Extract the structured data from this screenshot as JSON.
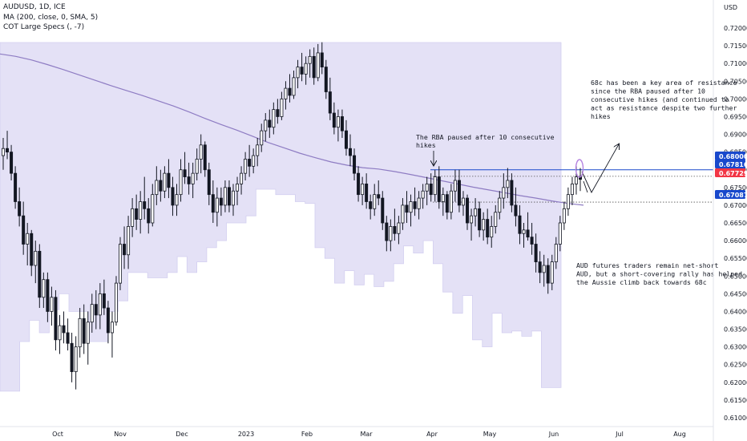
{
  "legend": {
    "symbol": "AUDUSD, 1D, ICE",
    "ma": "MA (200, close, 0, SMA, 5)",
    "cot": "COT Large Specs (, -7)"
  },
  "currency_label": "USD",
  "chart_data": {
    "type": "candlestick",
    "symbol": "AUDUSD",
    "timeframe": "1D",
    "x_ticks": [
      "Oct",
      "Nov",
      "Dec",
      "2023",
      "Feb",
      "Mar",
      "Apr",
      "May",
      "Jun",
      "Jul",
      "Aug"
    ],
    "y_ticks": [
      "0.72000",
      "0.71500",
      "0.71000",
      "0.70500",
      "0.70000",
      "0.69500",
      "0.69000",
      "0.68500",
      "0.68000",
      "0.67500",
      "0.67000",
      "0.66500",
      "0.66000",
      "0.65500",
      "0.65000",
      "0.64500",
      "0.64000",
      "0.63500",
      "0.63000",
      "0.62500",
      "0.62000",
      "0.61500",
      "0.61000"
    ],
    "ylim": [
      0.609,
      0.7245
    ],
    "price_badges": [
      {
        "value": "0.68000",
        "color": "#1848cc"
      },
      {
        "value": "0.67816",
        "color": "#1848cc"
      },
      {
        "value": "0.67729",
        "color": "#f23645"
      },
      {
        "value": "0.67087",
        "color": "#1848cc"
      }
    ],
    "horizontal_lines": [
      {
        "price": 0.68,
        "style": "solid",
        "color": "#1848cc"
      },
      {
        "price": 0.67816,
        "style": "dotted",
        "color": "#555555"
      },
      {
        "price": 0.67087,
        "style": "dotted",
        "color": "#555555"
      }
    ],
    "annotations": [
      {
        "lines": [
          "The RBA paused after 10 consecutive",
          "hikes"
        ]
      },
      {
        "lines": [
          "68c has been a key area of resistance",
          "since the RBA paused after 10",
          "consecutive hikes (and continued to",
          "act as resistance despite two further",
          "hikes"
        ]
      },
      {
        "lines": [
          "AUD futures traders remain net-short",
          "AUD, but a short-covering rally has helped",
          "the Aussie climb back towards 68c"
        ]
      }
    ],
    "series": [
      {
        "name": "MA (200, close, 0, SMA, 5)",
        "color": "#8e7cc3",
        "values": [
          0.7127,
          0.712,
          0.711,
          0.7097,
          0.7083,
          0.7068,
          0.7053,
          0.7038,
          0.7024,
          0.701,
          0.6995,
          0.698,
          0.6963,
          0.6945,
          0.6928,
          0.6912,
          0.6895,
          0.6877,
          0.6862,
          0.6847,
          0.6834,
          0.6822,
          0.6813,
          0.6806,
          0.6802,
          0.6795,
          0.6787,
          0.6778,
          0.6769,
          0.676,
          0.6751,
          0.6743,
          0.6735,
          0.6727,
          0.672,
          0.6712,
          0.6705,
          0.67
        ]
      },
      {
        "name": "COT Large Specs (, -7)",
        "color": "#b7b1e6",
        "values": [
          0.6175,
          0.6175,
          0.6315,
          0.6375,
          0.634,
          0.6405,
          0.645,
          0.64,
          0.64,
          0.6315,
          0.6315,
          0.64,
          0.643,
          0.651,
          0.651,
          0.6495,
          0.6495,
          0.651,
          0.6555,
          0.651,
          0.654,
          0.658,
          0.66,
          0.665,
          0.665,
          0.667,
          0.6745,
          0.6745,
          0.673,
          0.673,
          0.671,
          0.6705,
          0.658,
          0.655,
          0.648,
          0.6515,
          0.6475,
          0.6505,
          0.647,
          0.6485,
          0.6535,
          0.6585,
          0.6565,
          0.66,
          0.6535,
          0.6455,
          0.6395,
          0.6445,
          0.632,
          0.63,
          0.6395,
          0.634,
          0.6345,
          0.633,
          0.6345,
          0.6185,
          0.6185
        ]
      }
    ],
    "candle_ohlc": [
      [
        0.684,
        0.689,
        0.68,
        0.686
      ],
      [
        0.686,
        0.691,
        0.683,
        0.685
      ],
      [
        0.685,
        0.687,
        0.677,
        0.679
      ],
      [
        0.679,
        0.681,
        0.669,
        0.671
      ],
      [
        0.671,
        0.675,
        0.664,
        0.667
      ],
      [
        0.667,
        0.671,
        0.656,
        0.659
      ],
      [
        0.659,
        0.665,
        0.653,
        0.662
      ],
      [
        0.662,
        0.663,
        0.65,
        0.653
      ],
      [
        0.653,
        0.66,
        0.648,
        0.657
      ],
      [
        0.657,
        0.659,
        0.641,
        0.644
      ],
      [
        0.644,
        0.651,
        0.641,
        0.649
      ],
      [
        0.649,
        0.651,
        0.637,
        0.64
      ],
      [
        0.64,
        0.647,
        0.636,
        0.644
      ],
      [
        0.644,
        0.646,
        0.629,
        0.632
      ],
      [
        0.632,
        0.639,
        0.628,
        0.636
      ],
      [
        0.636,
        0.64,
        0.631,
        0.634
      ],
      [
        0.634,
        0.638,
        0.629,
        0.631
      ],
      [
        0.631,
        0.634,
        0.62,
        0.623
      ],
      [
        0.623,
        0.633,
        0.618,
        0.63
      ],
      [
        0.63,
        0.641,
        0.627,
        0.638
      ],
      [
        0.638,
        0.642,
        0.628,
        0.631
      ],
      [
        0.631,
        0.64,
        0.625,
        0.637
      ],
      [
        0.637,
        0.645,
        0.634,
        0.642
      ],
      [
        0.642,
        0.646,
        0.635,
        0.639
      ],
      [
        0.639,
        0.648,
        0.635,
        0.645
      ],
      [
        0.645,
        0.649,
        0.639,
        0.641
      ],
      [
        0.641,
        0.643,
        0.631,
        0.634
      ],
      [
        0.634,
        0.64,
        0.627,
        0.637
      ],
      [
        0.637,
        0.65,
        0.636,
        0.648
      ],
      [
        0.648,
        0.661,
        0.646,
        0.659
      ],
      [
        0.659,
        0.664,
        0.652,
        0.656
      ],
      [
        0.656,
        0.667,
        0.652,
        0.664
      ],
      [
        0.664,
        0.672,
        0.661,
        0.669
      ],
      [
        0.669,
        0.673,
        0.663,
        0.666
      ],
      [
        0.666,
        0.674,
        0.662,
        0.671
      ],
      [
        0.671,
        0.678,
        0.666,
        0.669
      ],
      [
        0.669,
        0.672,
        0.662,
        0.665
      ],
      [
        0.665,
        0.676,
        0.664,
        0.673
      ],
      [
        0.673,
        0.681,
        0.67,
        0.677
      ],
      [
        0.677,
        0.68,
        0.671,
        0.674
      ],
      [
        0.674,
        0.681,
        0.672,
        0.679
      ],
      [
        0.679,
        0.683,
        0.672,
        0.675
      ],
      [
        0.675,
        0.678,
        0.667,
        0.67
      ],
      [
        0.67,
        0.676,
        0.667,
        0.673
      ],
      [
        0.673,
        0.683,
        0.671,
        0.68
      ],
      [
        0.68,
        0.685,
        0.676,
        0.678
      ],
      [
        0.678,
        0.682,
        0.673,
        0.676
      ],
      [
        0.676,
        0.682,
        0.672,
        0.679
      ],
      [
        0.679,
        0.686,
        0.677,
        0.683
      ],
      [
        0.683,
        0.69,
        0.679,
        0.687
      ],
      [
        0.687,
        0.688,
        0.678,
        0.68
      ],
      [
        0.68,
        0.682,
        0.67,
        0.673
      ],
      [
        0.673,
        0.677,
        0.665,
        0.668
      ],
      [
        0.668,
        0.675,
        0.664,
        0.672
      ],
      [
        0.672,
        0.675,
        0.667,
        0.67
      ],
      [
        0.67,
        0.677,
        0.668,
        0.675
      ],
      [
        0.675,
        0.677,
        0.668,
        0.67
      ],
      [
        0.67,
        0.676,
        0.667,
        0.674
      ],
      [
        0.674,
        0.678,
        0.67,
        0.676
      ],
      [
        0.676,
        0.681,
        0.673,
        0.679
      ],
      [
        0.679,
        0.685,
        0.677,
        0.683
      ],
      [
        0.683,
        0.687,
        0.678,
        0.681
      ],
      [
        0.681,
        0.686,
        0.679,
        0.684
      ],
      [
        0.684,
        0.689,
        0.681,
        0.687
      ],
      [
        0.687,
        0.693,
        0.685,
        0.691
      ],
      [
        0.691,
        0.696,
        0.688,
        0.694
      ],
      [
        0.694,
        0.697,
        0.689,
        0.692
      ],
      [
        0.692,
        0.699,
        0.69,
        0.697
      ],
      [
        0.697,
        0.7,
        0.693,
        0.695
      ],
      [
        0.695,
        0.702,
        0.694,
        0.7
      ],
      [
        0.7,
        0.705,
        0.697,
        0.703
      ],
      [
        0.703,
        0.707,
        0.699,
        0.701
      ],
      [
        0.701,
        0.708,
        0.7,
        0.706
      ],
      [
        0.706,
        0.711,
        0.703,
        0.709
      ],
      [
        0.709,
        0.713,
        0.705,
        0.707
      ],
      [
        0.707,
        0.712,
        0.704,
        0.71
      ],
      [
        0.71,
        0.714,
        0.706,
        0.712
      ],
      [
        0.712,
        0.7145,
        0.704,
        0.706
      ],
      [
        0.706,
        0.7155,
        0.705,
        0.713
      ],
      [
        0.713,
        0.716,
        0.707,
        0.709
      ],
      [
        0.709,
        0.711,
        0.7,
        0.702
      ],
      [
        0.702,
        0.706,
        0.694,
        0.696
      ],
      [
        0.696,
        0.699,
        0.69,
        0.692
      ],
      [
        0.692,
        0.697,
        0.688,
        0.695
      ],
      [
        0.695,
        0.697,
        0.689,
        0.691
      ],
      [
        0.691,
        0.694,
        0.684,
        0.686
      ],
      [
        0.686,
        0.69,
        0.681,
        0.684
      ],
      [
        0.684,
        0.686,
        0.677,
        0.679
      ],
      [
        0.679,
        0.681,
        0.671,
        0.673
      ],
      [
        0.673,
        0.678,
        0.67,
        0.676
      ],
      [
        0.676,
        0.679,
        0.669,
        0.671
      ],
      [
        0.671,
        0.673,
        0.666,
        0.669
      ],
      [
        0.669,
        0.676,
        0.667,
        0.673
      ],
      [
        0.673,
        0.677,
        0.67,
        0.672
      ],
      [
        0.672,
        0.674,
        0.663,
        0.665
      ],
      [
        0.665,
        0.667,
        0.657,
        0.66
      ],
      [
        0.66,
        0.666,
        0.657,
        0.664
      ],
      [
        0.664,
        0.669,
        0.66,
        0.662
      ],
      [
        0.662,
        0.667,
        0.659,
        0.665
      ],
      [
        0.665,
        0.672,
        0.663,
        0.67
      ],
      [
        0.67,
        0.674,
        0.665,
        0.668
      ],
      [
        0.668,
        0.673,
        0.664,
        0.671
      ],
      [
        0.671,
        0.675,
        0.667,
        0.669
      ],
      [
        0.669,
        0.674,
        0.666,
        0.672
      ],
      [
        0.672,
        0.676,
        0.669,
        0.674
      ],
      [
        0.674,
        0.678,
        0.67,
        0.676
      ],
      [
        0.676,
        0.679,
        0.671,
        0.673
      ],
      [
        0.673,
        0.68,
        0.671,
        0.678
      ],
      [
        0.678,
        0.681,
        0.669,
        0.671
      ],
      [
        0.671,
        0.675,
        0.667,
        0.673
      ],
      [
        0.673,
        0.674,
        0.666,
        0.668
      ],
      [
        0.668,
        0.676,
        0.666,
        0.674
      ],
      [
        0.674,
        0.68,
        0.671,
        0.677
      ],
      [
        0.677,
        0.68,
        0.668,
        0.67
      ],
      [
        0.67,
        0.674,
        0.667,
        0.672
      ],
      [
        0.672,
        0.673,
        0.663,
        0.665
      ],
      [
        0.665,
        0.669,
        0.66,
        0.667
      ],
      [
        0.667,
        0.672,
        0.664,
        0.669
      ],
      [
        0.669,
        0.671,
        0.661,
        0.663
      ],
      [
        0.663,
        0.668,
        0.66,
        0.666
      ],
      [
        0.666,
        0.669,
        0.659,
        0.661
      ],
      [
        0.661,
        0.667,
        0.658,
        0.664
      ],
      [
        0.664,
        0.67,
        0.662,
        0.668
      ],
      [
        0.668,
        0.674,
        0.666,
        0.672
      ],
      [
        0.672,
        0.679,
        0.669,
        0.675
      ],
      [
        0.675,
        0.6805,
        0.672,
        0.677
      ],
      [
        0.677,
        0.679,
        0.668,
        0.67
      ],
      [
        0.67,
        0.675,
        0.664,
        0.667
      ],
      [
        0.667,
        0.67,
        0.659,
        0.662
      ],
      [
        0.662,
        0.665,
        0.658,
        0.663
      ],
      [
        0.663,
        0.668,
        0.66,
        0.661
      ],
      [
        0.661,
        0.665,
        0.656,
        0.659
      ],
      [
        0.659,
        0.662,
        0.651,
        0.654
      ],
      [
        0.654,
        0.657,
        0.648,
        0.651
      ],
      [
        0.651,
        0.656,
        0.647,
        0.653
      ],
      [
        0.653,
        0.655,
        0.645,
        0.648
      ],
      [
        0.648,
        0.656,
        0.646,
        0.654
      ],
      [
        0.654,
        0.661,
        0.652,
        0.659
      ],
      [
        0.659,
        0.667,
        0.657,
        0.665
      ],
      [
        0.665,
        0.671,
        0.663,
        0.669
      ],
      [
        0.669,
        0.675,
        0.667,
        0.673
      ],
      [
        0.673,
        0.678,
        0.67,
        0.676
      ],
      [
        0.676,
        0.681,
        0.673,
        0.678
      ],
      [
        0.678,
        0.6805,
        0.674,
        0.6773
      ]
    ]
  }
}
